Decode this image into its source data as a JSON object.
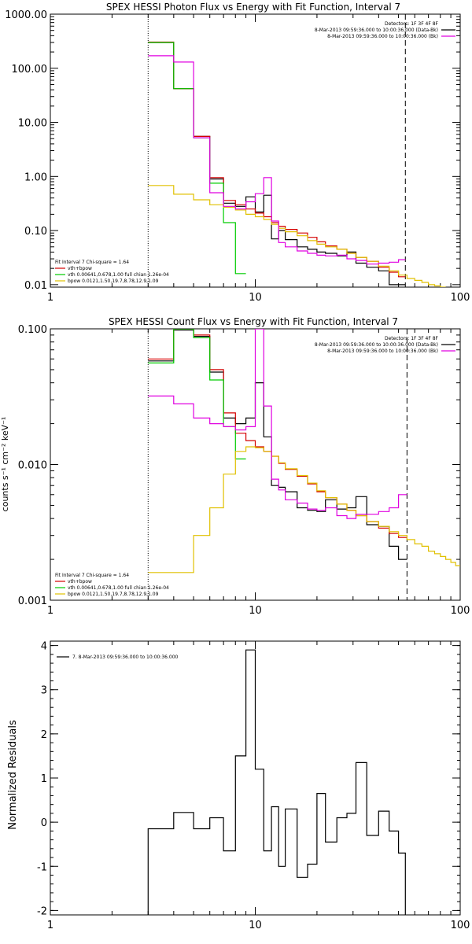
{
  "colors": {
    "axes": "#000000",
    "data": "#000000",
    "total_fit": "#d40000",
    "vth": "#00cc00",
    "bpow": "#e0c000",
    "background": "#e000e0"
  },
  "chart_data": [
    {
      "type": "line",
      "title": "SPEX HESSI Photon Flux vs Energy with Fit Function, Interval 7",
      "xlabel": "",
      "ylabel": "",
      "xscale": "log",
      "yscale": "log",
      "xlim": [
        1,
        100
      ],
      "ylim": [
        0.009,
        1000
      ],
      "xticks": [
        {
          "v": 1,
          "label": "1"
        },
        {
          "v": 10,
          "label": "10"
        },
        {
          "v": 100,
          "label": "100"
        }
      ],
      "yticks": [
        {
          "v": 0.01,
          "label": "0.01"
        },
        {
          "v": 0.1,
          "label": "0.10"
        },
        {
          "v": 1,
          "label": "1.00"
        },
        {
          "v": 10,
          "label": "10.00"
        },
        {
          "v": 100,
          "label": "100.00"
        },
        {
          "v": 1000,
          "label": "1000.00"
        }
      ],
      "vlines": [
        {
          "x": 3,
          "style": "dotted"
        },
        {
          "x": 54,
          "style": "dashed"
        }
      ],
      "info_lines": [
        "Detectors: 1F 3F 4F 8F",
        "8-Mar-2013 09:59:36.000 to 10:00:36.000 (Data-Bk)",
        "8-Mar-2013 09:59:36.000 to 10:00:36.000 (Bk)"
      ],
      "info_colors": [
        "none",
        "data",
        "background"
      ],
      "fit_legend": [
        "Fit Interval  7    Chi-square = 1.64",
        "vth+bpow",
        "vth 0.00641,0.678,1.00   full chian 1.26e-04",
        "bpow 0.0121,1.50,19.7,8.78,12.9,1.09"
      ],
      "fit_legend_colors": [
        "none",
        "total_fit",
        "vth",
        "bpow"
      ],
      "series": [
        {
          "name": "Data-Bk",
          "color_key": "data",
          "edges": [
            3,
            4,
            5,
            6,
            7,
            8,
            9,
            10,
            11,
            12,
            13,
            14,
            16,
            18,
            20,
            22,
            25,
            28,
            31,
            35,
            40,
            45,
            50,
            54
          ],
          "values": [
            300,
            42,
            5.5,
            0.9,
            0.32,
            0.28,
            0.42,
            0.22,
            0.45,
            0.07,
            0.1,
            0.068,
            0.05,
            0.045,
            0.04,
            0.038,
            0.034,
            0.04,
            0.025,
            0.021,
            0.018,
            0.01,
            0.01
          ]
        },
        {
          "name": "vth+bpow",
          "color_key": "total_fit",
          "edges": [
            3,
            4,
            5,
            6,
            7,
            8,
            9,
            10,
            11,
            12,
            13,
            14,
            16,
            18,
            20,
            22,
            25,
            28,
            31,
            35,
            40,
            45,
            50,
            54
          ],
          "values": [
            305,
            42,
            5.5,
            0.95,
            0.36,
            0.3,
            0.25,
            0.21,
            0.18,
            0.14,
            0.12,
            0.105,
            0.09,
            0.075,
            0.062,
            0.052,
            0.045,
            0.038,
            0.032,
            0.027,
            0.021,
            0.017,
            0.014
          ]
        },
        {
          "name": "vth",
          "color_key": "vth",
          "edges": [
            3,
            4,
            5,
            6,
            7,
            8,
            9
          ],
          "values": [
            300,
            42,
            5.2,
            0.75,
            0.14,
            0.016
          ]
        },
        {
          "name": "bpow",
          "color_key": "bpow",
          "edges": [
            3,
            4,
            5,
            6,
            7,
            8,
            9,
            10,
            11,
            12,
            13,
            14,
            16,
            18,
            20,
            22,
            25,
            28,
            31,
            35,
            40,
            45,
            50,
            55,
            60,
            65,
            70,
            75,
            80,
            85
          ],
          "values": [
            0.68,
            0.47,
            0.37,
            0.3,
            0.27,
            0.24,
            0.2,
            0.18,
            0.16,
            0.13,
            0.11,
            0.095,
            0.08,
            0.065,
            0.056,
            0.05,
            0.045,
            0.038,
            0.032,
            0.027,
            0.022,
            0.018,
            0.015,
            0.013,
            0.012,
            0.011,
            0.01,
            0.0095,
            0.009
          ]
        },
        {
          "name": "Bk",
          "color_key": "background",
          "edges": [
            3,
            4,
            5,
            6,
            7,
            8,
            9,
            10,
            11,
            12,
            13,
            14,
            16,
            18,
            20,
            22,
            25,
            28,
            31,
            35,
            40,
            45,
            50,
            54
          ],
          "values": [
            170,
            130,
            5.2,
            0.5,
            0.28,
            0.25,
            0.34,
            0.48,
            0.95,
            0.15,
            0.06,
            0.05,
            0.042,
            0.038,
            0.035,
            0.034,
            0.035,
            0.03,
            0.028,
            0.024,
            0.025,
            0.026,
            0.029
          ]
        }
      ]
    },
    {
      "type": "line",
      "title": "SPEX HESSI Count Flux vs Energy with Fit Function, Interval 7",
      "xlabel": "",
      "ylabel": "counts s⁻¹ cm⁻² keV⁻¹",
      "xscale": "log",
      "yscale": "log",
      "xlim": [
        1,
        100
      ],
      "ylim": [
        0.001,
        0.1
      ],
      "xticks": [
        {
          "v": 1,
          "label": "1"
        },
        {
          "v": 10,
          "label": "10"
        },
        {
          "v": 100,
          "label": "100"
        }
      ],
      "yticks": [
        {
          "v": 0.001,
          "label": "0.001"
        },
        {
          "v": 0.01,
          "label": "0.010"
        },
        {
          "v": 0.1,
          "label": "0.100"
        }
      ],
      "vlines": [
        {
          "x": 3,
          "style": "dotted"
        },
        {
          "x": 55,
          "style": "dashed"
        }
      ],
      "info_lines": [
        "Detectors: 1F 3F 4F 8F",
        "8-Mar-2013 09:59:36.000 to 10:00:36.000 (Data-Bk)",
        "8-Mar-2013 09:59:36.000 to 10:00:36.000 (Bk)"
      ],
      "info_colors": [
        "none",
        "data",
        "background"
      ],
      "fit_legend": [
        "Fit Interval  7    Chi-square = 1.64",
        "vth+bpow",
        "vth 0.00641,0.678,1.00   full chian 1.26e-04",
        "bpow 0.0121,1.50,19.7,8.78,12.9,1.09"
      ],
      "fit_legend_colors": [
        "none",
        "total_fit",
        "vth",
        "bpow"
      ],
      "series": [
        {
          "name": "Data-Bk",
          "color_key": "data",
          "edges": [
            3,
            4,
            5,
            6,
            7,
            8,
            9,
            10,
            11,
            12,
            13,
            14,
            16,
            18,
            20,
            22,
            25,
            28,
            31,
            35,
            40,
            45,
            50,
            55
          ],
          "values": [
            0.058,
            0.098,
            0.088,
            0.048,
            0.022,
            0.02,
            0.022,
            0.04,
            0.016,
            0.007,
            0.0068,
            0.0063,
            0.0048,
            0.0046,
            0.0045,
            0.0055,
            0.0047,
            0.0048,
            0.0058,
            0.0036,
            0.0035,
            0.0025,
            0.002
          ]
        },
        {
          "name": "vth+bpow",
          "color_key": "total_fit",
          "edges": [
            3,
            4,
            5,
            6,
            7,
            8,
            9,
            10,
            11,
            12,
            13,
            14,
            16,
            18,
            20,
            22,
            25,
            28,
            31,
            35,
            40,
            45,
            50,
            55
          ],
          "values": [
            0.06,
            0.1,
            0.09,
            0.05,
            0.024,
            0.017,
            0.015,
            0.0135,
            0.0125,
            0.0115,
            0.0102,
            0.0092,
            0.0082,
            0.0072,
            0.0063,
            0.0057,
            0.0051,
            0.0046,
            0.0042,
            0.0038,
            0.0034,
            0.0031,
            0.0029
          ]
        },
        {
          "name": "vth",
          "color_key": "vth",
          "edges": [
            3,
            4,
            5,
            6,
            7,
            8,
            9
          ],
          "values": [
            0.056,
            0.1,
            0.086,
            0.042,
            0.019,
            0.011
          ]
        },
        {
          "name": "bpow",
          "color_key": "bpow",
          "edges": [
            3,
            4,
            5,
            6,
            7,
            8,
            9,
            10,
            11,
            12,
            13,
            14,
            16,
            18,
            20,
            22,
            25,
            28,
            31,
            35,
            40,
            45,
            50,
            55,
            60,
            65,
            70,
            75,
            80,
            85,
            90,
            95,
            100
          ],
          "values": [
            0.0016,
            0.0016,
            0.003,
            0.0048,
            0.0085,
            0.0125,
            0.0135,
            0.0133,
            0.0125,
            0.0115,
            0.0103,
            0.0093,
            0.0083,
            0.0073,
            0.0064,
            0.0057,
            0.0051,
            0.0046,
            0.0042,
            0.0038,
            0.0035,
            0.0032,
            0.003,
            0.0028,
            0.0026,
            0.0025,
            0.0023,
            0.0022,
            0.0021,
            0.002,
            0.0019,
            0.0018
          ]
        },
        {
          "name": "Bk",
          "color_key": "background",
          "edges": [
            3,
            4,
            5,
            6,
            7,
            8,
            9,
            10,
            11,
            12,
            13,
            14,
            16,
            18,
            20,
            22,
            25,
            28,
            31,
            35,
            40,
            45,
            50,
            55
          ],
          "values": [
            0.032,
            0.028,
            0.022,
            0.02,
            0.019,
            0.018,
            0.019,
            0.1,
            0.027,
            0.0078,
            0.0065,
            0.0055,
            0.0052,
            0.0047,
            0.0046,
            0.0048,
            0.0042,
            0.004,
            0.0043,
            0.0043,
            0.0045,
            0.0048,
            0.006
          ]
        }
      ]
    },
    {
      "type": "line",
      "title": "",
      "xlabel": "",
      "ylabel": "Normalized Residuals",
      "xscale": "log",
      "yscale": "linear",
      "xlim": [
        1,
        100
      ],
      "ylim": [
        -2.1,
        4.1
      ],
      "xticks": [
        {
          "v": 1,
          "label": "1"
        },
        {
          "v": 10,
          "label": "10"
        },
        {
          "v": 100,
          "label": "100"
        }
      ],
      "yticks": [
        {
          "v": -2,
          "label": "-2"
        },
        {
          "v": -1,
          "label": "-1"
        },
        {
          "v": 0,
          "label": "0"
        },
        {
          "v": 1,
          "label": "1"
        },
        {
          "v": 2,
          "label": "2"
        },
        {
          "v": 3,
          "label": "3"
        },
        {
          "v": 4,
          "label": "4"
        }
      ],
      "vlines": [],
      "legend_line": "7.  8-Mar-2013 09:59:36.000 to 10:00:36.000",
      "series": [
        {
          "name": "7.  8-Mar-2013 09:59:36.000 to 10:00:36.000",
          "color_key": "data",
          "edges": [
            3,
            4,
            5,
            6,
            7,
            8,
            9,
            10,
            11,
            12,
            13,
            14,
            16,
            18,
            20,
            22,
            25,
            28,
            31,
            35,
            40,
            45,
            50,
            54
          ],
          "values": [
            -0.15,
            0.22,
            -0.15,
            0.1,
            -0.65,
            1.5,
            3.9,
            1.2,
            -0.65,
            0.35,
            -1.0,
            0.3,
            -1.25,
            -0.95,
            0.65,
            -0.45,
            0.1,
            0.2,
            1.35,
            -0.3,
            0.25,
            -0.2,
            -0.7
          ],
          "drop_to_bottom": true
        }
      ]
    }
  ]
}
